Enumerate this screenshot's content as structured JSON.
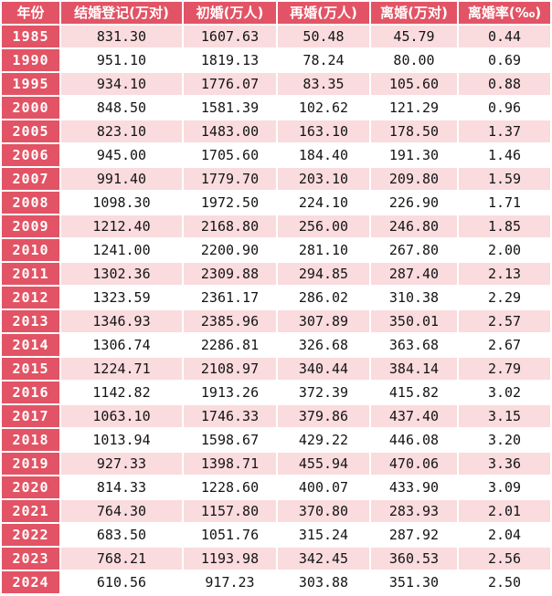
{
  "colors": {
    "accent_red": "#e25465",
    "row_pink": "#fadbde",
    "row_white": "#ffffff",
    "header_text": "#ffffff",
    "value_text": "#141414"
  },
  "chart_data": {
    "type": "table",
    "columns": [
      "年份",
      "结婚登记(万对)",
      "初婚(万人)",
      "再婚(万人)",
      "离婚(万对)",
      "离婚率(‰)"
    ],
    "rows": [
      [
        "1985",
        "831.30",
        "1607.63",
        "50.48",
        "45.79",
        "0.44"
      ],
      [
        "1990",
        "951.10",
        "1819.13",
        "78.24",
        "80.00",
        "0.69"
      ],
      [
        "1995",
        "934.10",
        "1776.07",
        "83.35",
        "105.60",
        "0.88"
      ],
      [
        "2000",
        "848.50",
        "1581.39",
        "102.62",
        "121.29",
        "0.96"
      ],
      [
        "2005",
        "823.10",
        "1483.00",
        "163.10",
        "178.50",
        "1.37"
      ],
      [
        "2006",
        "945.00",
        "1705.60",
        "184.40",
        "191.30",
        "1.46"
      ],
      [
        "2007",
        "991.40",
        "1779.70",
        "203.10",
        "209.80",
        "1.59"
      ],
      [
        "2008",
        "1098.30",
        "1972.50",
        "224.10",
        "226.90",
        "1.71"
      ],
      [
        "2009",
        "1212.40",
        "2168.80",
        "256.00",
        "246.80",
        "1.85"
      ],
      [
        "2010",
        "1241.00",
        "2200.90",
        "281.10",
        "267.80",
        "2.00"
      ],
      [
        "2011",
        "1302.36",
        "2309.88",
        "294.85",
        "287.40",
        "2.13"
      ],
      [
        "2012",
        "1323.59",
        "2361.17",
        "286.02",
        "310.38",
        "2.29"
      ],
      [
        "2013",
        "1346.93",
        "2385.96",
        "307.89",
        "350.01",
        "2.57"
      ],
      [
        "2014",
        "1306.74",
        "2286.81",
        "326.68",
        "363.68",
        "2.67"
      ],
      [
        "2015",
        "1224.71",
        "2108.97",
        "340.44",
        "384.14",
        "2.79"
      ],
      [
        "2016",
        "1142.82",
        "1913.26",
        "372.39",
        "415.82",
        "3.02"
      ],
      [
        "2017",
        "1063.10",
        "1746.33",
        "379.86",
        "437.40",
        "3.15"
      ],
      [
        "2018",
        "1013.94",
        "1598.67",
        "429.22",
        "446.08",
        "3.20"
      ],
      [
        "2019",
        "927.33",
        "1398.71",
        "455.94",
        "470.06",
        "3.36"
      ],
      [
        "2020",
        "814.33",
        "1228.60",
        "400.07",
        "433.90",
        "3.09"
      ],
      [
        "2021",
        "764.30",
        "1157.80",
        "370.80",
        "283.93",
        "2.01"
      ],
      [
        "2022",
        "683.50",
        "1051.76",
        "315.24",
        "287.92",
        "2.04"
      ],
      [
        "2023",
        "768.21",
        "1193.98",
        "342.45",
        "360.53",
        "2.56"
      ],
      [
        "2024",
        "610.56",
        "917.23",
        "303.88",
        "351.30",
        "2.50"
      ]
    ]
  }
}
